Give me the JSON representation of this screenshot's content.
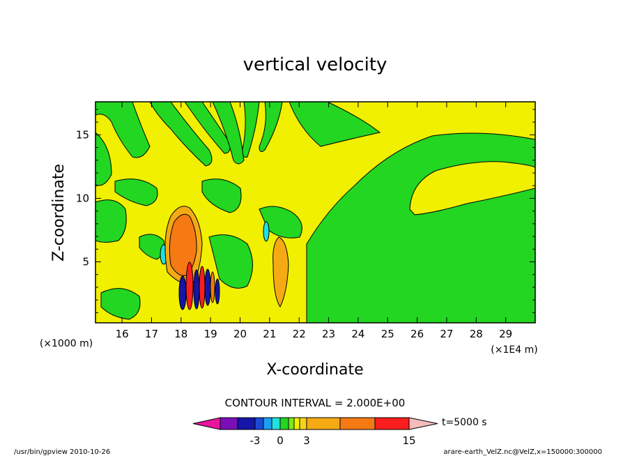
{
  "chart_data": {
    "type": "heatmap",
    "title": "vertical velocity",
    "xlabel": "X-coordinate",
    "ylabel": "Z-coordinate",
    "x_unit_left": "(×1000 m)",
    "x_unit_right": "(×1E4 m)",
    "x_ticks": [
      "16",
      "17",
      "18",
      "19",
      "20",
      "21",
      "22",
      "23",
      "24",
      "25",
      "26",
      "27",
      "28",
      "29"
    ],
    "y_ticks": [
      "5",
      "10",
      "15"
    ],
    "xlim": [
      15.1,
      30.0
    ],
    "ylim": [
      0.2,
      17.6
    ],
    "contour_interval_text": "CONTOUR INTERVAL = 2.000E+00",
    "colorbar": {
      "labels": [
        "-3",
        "0",
        "3",
        "15"
      ],
      "colors": [
        "#e8169e",
        "#7a0fb8",
        "#1515a8",
        "#1a4ad6",
        "#1aa0f0",
        "#20e0e0",
        "#22d622",
        "#7ce81e",
        "#f0f000",
        "#f7d21a",
        "#f5aa14",
        "#f57a14",
        "#fa1e1e",
        "#fa7a7a",
        "#f5bcbc"
      ]
    },
    "time_label": "t=5000 s",
    "footer_left": "/usr/bin/gpview  2010-10-26",
    "footer_right": "arare-earth_VelZ.nc@VelZ,x=150000:300000",
    "field_colors": {
      "positive": "#f0f000",
      "negative": "#22d622",
      "updraft": "#f57a14",
      "strong_up": "#fa1e1e",
      "downdraft": "#1515a8",
      "weak_down": "#20e0e0",
      "mid_up": "#f5aa14"
    }
  }
}
